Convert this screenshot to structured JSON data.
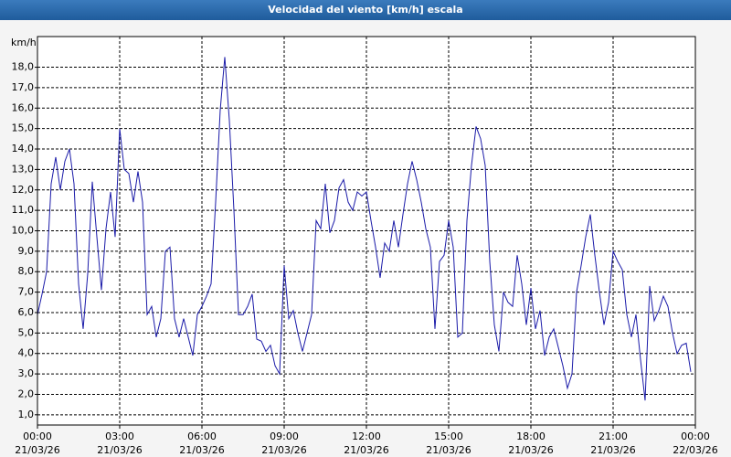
{
  "chart_data": {
    "type": "line",
    "title": "Velocidad del viento [km/h] escala",
    "y_unit": "km/h",
    "color": "#1a1aa8",
    "grid": true,
    "xlim": [
      0,
      1440
    ],
    "xticks": [
      {
        "value": 0,
        "label": "00:00\n21/03/26"
      },
      {
        "value": 180,
        "label": "03:00\n21/03/26"
      },
      {
        "value": 360,
        "label": "06:00\n21/03/26"
      },
      {
        "value": 540,
        "label": "09:00\n21/03/26"
      },
      {
        "value": 720,
        "label": "12:00\n21/03/26"
      },
      {
        "value": 900,
        "label": "15:00\n21/03/26"
      },
      {
        "value": 1080,
        "label": "18:00\n21/03/26"
      },
      {
        "value": 1260,
        "label": "21:00\n21/03/26"
      },
      {
        "value": 1440,
        "label": "00:00\n22/03/26"
      }
    ],
    "ylim": [
      0.5,
      19.5
    ],
    "yticks": [
      {
        "value": 1,
        "label": "1,0"
      },
      {
        "value": 2,
        "label": "2,0"
      },
      {
        "value": 3,
        "label": "3,0"
      },
      {
        "value": 4,
        "label": "4,0"
      },
      {
        "value": 5,
        "label": "5,0"
      },
      {
        "value": 6,
        "label": "6,0"
      },
      {
        "value": 7,
        "label": "7,0"
      },
      {
        "value": 8,
        "label": "8,0"
      },
      {
        "value": 9,
        "label": "9,0"
      },
      {
        "value": 10,
        "label": "10,0"
      },
      {
        "value": 11,
        "label": "11,0"
      },
      {
        "value": 12,
        "label": "12,0"
      },
      {
        "value": 13,
        "label": "13,0"
      },
      {
        "value": 14,
        "label": "14,0"
      },
      {
        "value": 15,
        "label": "15,0"
      },
      {
        "value": 16,
        "label": "16,0"
      },
      {
        "value": 17,
        "label": "17,0"
      },
      {
        "value": 18,
        "label": "18,0"
      }
    ],
    "x": [
      0,
      10,
      20,
      30,
      40,
      50,
      60,
      70,
      80,
      90,
      100,
      110,
      120,
      130,
      140,
      150,
      160,
      170,
      180,
      190,
      200,
      210,
      220,
      230,
      240,
      250,
      260,
      270,
      280,
      290,
      300,
      310,
      320,
      330,
      340,
      350,
      360,
      370,
      380,
      390,
      400,
      410,
      420,
      430,
      440,
      450,
      460,
      470,
      480,
      490,
      500,
      510,
      520,
      530,
      540,
      550,
      560,
      570,
      580,
      590,
      600,
      610,
      620,
      630,
      640,
      650,
      660,
      670,
      680,
      690,
      700,
      710,
      720,
      730,
      740,
      750,
      760,
      770,
      780,
      790,
      800,
      810,
      820,
      830,
      840,
      850,
      860,
      870,
      880,
      890,
      900,
      910,
      920,
      930,
      940,
      950,
      960,
      970,
      980,
      990,
      1000,
      1010,
      1020,
      1030,
      1040,
      1050,
      1060,
      1070,
      1080,
      1090,
      1100,
      1110,
      1120,
      1130,
      1140,
      1150,
      1160,
      1170,
      1180,
      1190,
      1200,
      1210,
      1220,
      1230,
      1240,
      1250,
      1260,
      1270,
      1280,
      1290,
      1300,
      1310,
      1320,
      1330,
      1340,
      1350,
      1360,
      1370,
      1380,
      1390,
      1400,
      1410,
      1420,
      1430
    ],
    "values": [
      5.9,
      6.9,
      8.0,
      12.3,
      13.6,
      12.0,
      13.4,
      14.0,
      12.3,
      7.4,
      5.2,
      7.9,
      12.4,
      9.7,
      7.1,
      10.1,
      11.9,
      9.7,
      15.0,
      13.0,
      12.8,
      11.4,
      12.9,
      11.4,
      5.9,
      6.3,
      4.8,
      5.7,
      9.0,
      9.2,
      5.7,
      4.8,
      5.7,
      4.8,
      3.9,
      5.9,
      6.3,
      6.8,
      7.4,
      11.4,
      15.9,
      18.5,
      15.4,
      11.0,
      5.9,
      5.9,
      6.3,
      6.9,
      4.7,
      4.6,
      4.1,
      4.4,
      3.4,
      3.0,
      8.3,
      5.7,
      6.1,
      5.0,
      4.1,
      5.0,
      5.9,
      10.5,
      10.1,
      12.3,
      9.9,
      10.5,
      12.1,
      12.5,
      11.4,
      11.0,
      11.9,
      11.7,
      11.9,
      10.5,
      9.2,
      7.7,
      9.4,
      9.0,
      10.5,
      9.2,
      10.8,
      12.3,
      13.4,
      12.5,
      11.4,
      10.1,
      9.2,
      5.2,
      8.5,
      8.8,
      10.5,
      9.2,
      4.8,
      5.0,
      10.5,
      13.2,
      15.1,
      14.5,
      13.2,
      8.5,
      5.4,
      4.1,
      7.0,
      6.5,
      6.3,
      8.8,
      7.4,
      5.4,
      7.2,
      5.2,
      6.1,
      3.9,
      4.8,
      5.2,
      4.3,
      3.4,
      2.3,
      3.0,
      7.0,
      8.3,
      9.7,
      10.8,
      8.8,
      7.0,
      5.4,
      6.5,
      9.0,
      8.5,
      8.1,
      5.9,
      4.8,
      5.9,
      3.7,
      1.7,
      7.3,
      5.6,
      6.1,
      6.8,
      6.3,
      5.0,
      4.0,
      4.4,
      4.5,
      3.1
    ]
  }
}
